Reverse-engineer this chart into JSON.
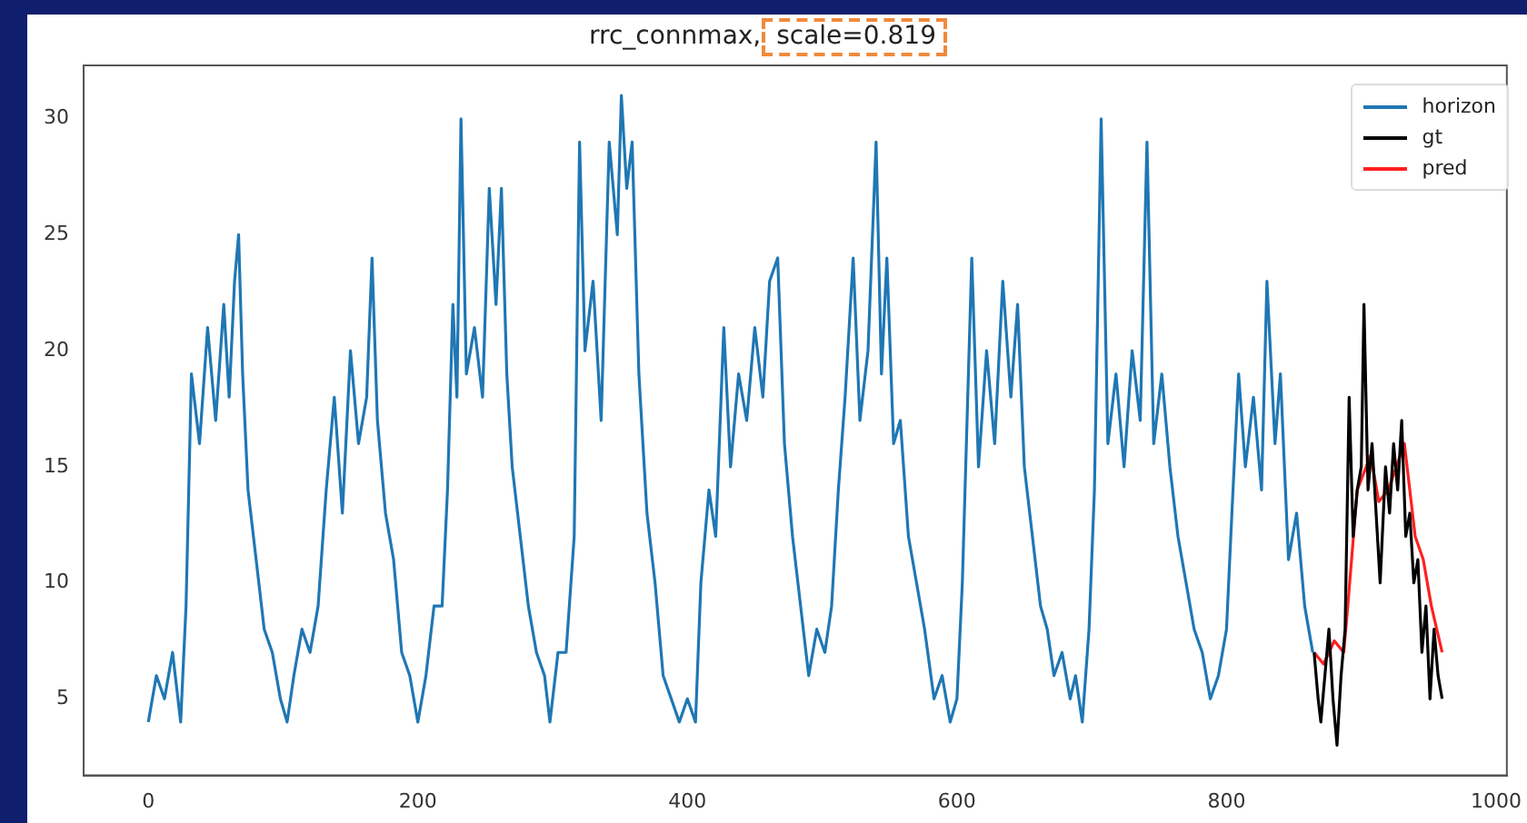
{
  "chart_data": {
    "type": "line",
    "title": "rrc_connmax, scale=0.819",
    "xlim": [
      -48,
      1008
    ],
    "xticks": [
      0,
      200,
      400,
      600,
      800,
      1000
    ],
    "ylim": [
      1.7,
      32.3
    ],
    "yticks": [
      5,
      10,
      15,
      20,
      25,
      30
    ],
    "grid": false,
    "legend": "top right",
    "marker": "none",
    "line_style": "solid",
    "series": [
      {
        "name": "horizon",
        "color": "#1f77b4",
        "x": [
          0,
          6,
          12,
          18,
          24,
          28,
          32,
          38,
          44,
          50,
          56,
          60,
          64,
          67,
          70,
          74,
          80,
          86,
          92,
          98,
          103,
          108,
          114,
          120,
          126,
          132,
          138,
          144,
          150,
          156,
          162,
          166,
          170,
          176,
          182,
          188,
          194,
          200,
          206,
          212,
          218,
          222,
          226,
          229,
          232,
          236,
          242,
          248,
          253,
          258,
          262,
          266,
          270,
          276,
          282,
          288,
          294,
          298,
          304,
          310,
          316,
          320,
          324,
          330,
          336,
          342,
          348,
          351,
          355,
          359,
          364,
          370,
          376,
          382,
          388,
          394,
          400,
          406,
          410,
          416,
          421,
          427,
          432,
          438,
          444,
          450,
          456,
          461,
          467,
          472,
          478,
          484,
          490,
          496,
          502,
          507,
          512,
          517,
          523,
          528,
          534,
          540,
          544,
          548,
          553,
          558,
          564,
          570,
          576,
          583,
          589,
          595,
          600,
          604,
          607,
          611,
          616,
          622,
          628,
          634,
          640,
          645,
          650,
          656,
          662,
          667,
          672,
          678,
          684,
          688,
          693,
          698,
          702,
          707,
          712,
          718,
          724,
          730,
          736,
          741,
          746,
          752,
          758,
          764,
          770,
          776,
          782,
          788,
          794,
          800,
          804,
          809,
          814,
          820,
          826,
          830,
          836,
          840,
          846,
          852,
          858,
          864
        ],
        "values": [
          4,
          6,
          5,
          7,
          4,
          9,
          19,
          16,
          21,
          17,
          22,
          18,
          23,
          25,
          19,
          14,
          11,
          8,
          7,
          5,
          4,
          6,
          8,
          7,
          9,
          14,
          18,
          13,
          20,
          16,
          18,
          24,
          17,
          13,
          11,
          7,
          6,
          4,
          6,
          9,
          9,
          14,
          22,
          18,
          30,
          19,
          21,
          18,
          27,
          22,
          27,
          19,
          15,
          12,
          9,
          7,
          6,
          4,
          7,
          7,
          12,
          29,
          20,
          23,
          17,
          29,
          25,
          31,
          27,
          29,
          19,
          13,
          10,
          6,
          5,
          4,
          5,
          4,
          10,
          14,
          12,
          21,
          15,
          19,
          17,
          21,
          18,
          23,
          24,
          16,
          12,
          9,
          6,
          8,
          7,
          9,
          14,
          18,
          24,
          17,
          20,
          29,
          19,
          24,
          16,
          17,
          12,
          10,
          8,
          5,
          6,
          4,
          5,
          10,
          16,
          24,
          15,
          20,
          16,
          23,
          18,
          22,
          15,
          12,
          9,
          8,
          6,
          7,
          5,
          6,
          4,
          8,
          14,
          30,
          16,
          19,
          15,
          20,
          17,
          29,
          16,
          19,
          15,
          12,
          10,
          8,
          7,
          5,
          6,
          8,
          13,
          19,
          15,
          18,
          14,
          23,
          16,
          19,
          11,
          13,
          9,
          7
        ]
      },
      {
        "name": "gt",
        "color": "#000000",
        "x": [
          865,
          868,
          870,
          873,
          876,
          879,
          882,
          885,
          888,
          891,
          894,
          897,
          900,
          902,
          905,
          908,
          911,
          914,
          918,
          921,
          924,
          927,
          930,
          933,
          936,
          939,
          942,
          945,
          948,
          951,
          954,
          957,
          960
        ],
        "values": [
          7,
          5,
          4,
          6,
          8,
          5,
          3,
          6,
          8,
          18,
          12,
          14,
          15,
          22,
          14,
          16,
          13,
          10,
          15,
          13,
          16,
          14,
          17,
          12,
          13,
          10,
          11,
          7,
          9,
          5,
          8,
          6,
          5
        ]
      },
      {
        "name": "pred",
        "color": "#ff2020",
        "x": [
          865,
          872,
          880,
          887,
          890,
          897,
          907,
          913,
          920,
          926,
          932,
          940,
          946,
          952,
          960
        ],
        "values": [
          7,
          6.5,
          7.5,
          7,
          9,
          14,
          15.5,
          13.5,
          14,
          15,
          16,
          12,
          11,
          9,
          7
        ]
      }
    ]
  }
}
